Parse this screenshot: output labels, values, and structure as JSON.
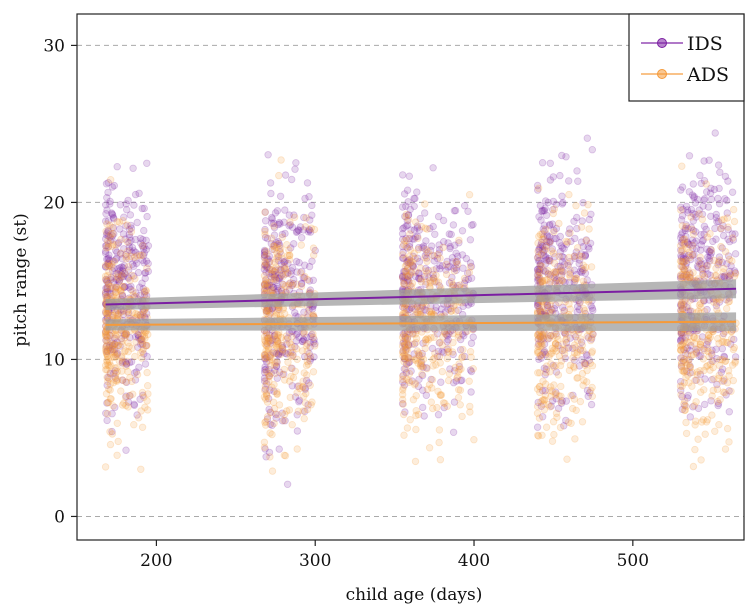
{
  "chart_data": {
    "type": "scatter",
    "title": "",
    "xlabel": "child age (days)",
    "ylabel": "pitch range (st)",
    "xlim": [
      150,
      570
    ],
    "ylim": [
      -1.5,
      32
    ],
    "xticks": [
      200,
      300,
      400,
      500
    ],
    "yticks": [
      0,
      10,
      20,
      30
    ],
    "grid": "horizontal-dashed",
    "legend_position": "top-right",
    "series": [
      {
        "name": "IDS",
        "color": "#7b1fa2",
        "point_opacity": 0.18,
        "fit_line": {
          "x": [
            168,
            565
          ],
          "y": [
            13.5,
            14.5
          ]
        },
        "age_groups": [
          {
            "x_min": 168,
            "x_max": 195,
            "mean": 14.5,
            "sd": 5.0,
            "n": 320
          },
          {
            "x_min": 268,
            "x_max": 300,
            "mean": 13.8,
            "sd": 5.2,
            "n": 320
          },
          {
            "x_min": 355,
            "x_max": 400,
            "mean": 14.2,
            "sd": 4.8,
            "n": 340
          },
          {
            "x_min": 440,
            "x_max": 475,
            "mean": 14.8,
            "sd": 5.0,
            "n": 320
          },
          {
            "x_min": 530,
            "x_max": 565,
            "mean": 15.0,
            "sd": 5.2,
            "n": 320
          }
        ]
      },
      {
        "name": "ADS",
        "color": "#f59a3a",
        "point_opacity": 0.18,
        "fit_line": {
          "x": [
            168,
            565
          ],
          "y": [
            12.2,
            12.4
          ]
        },
        "age_groups": [
          {
            "x_min": 168,
            "x_max": 195,
            "mean": 12.4,
            "sd": 4.5,
            "n": 320
          },
          {
            "x_min": 268,
            "x_max": 300,
            "mean": 12.0,
            "sd": 4.8,
            "n": 320
          },
          {
            "x_min": 355,
            "x_max": 400,
            "mean": 12.3,
            "sd": 4.6,
            "n": 340
          },
          {
            "x_min": 440,
            "x_max": 475,
            "mean": 12.2,
            "sd": 4.6,
            "n": 320
          },
          {
            "x_min": 530,
            "x_max": 565,
            "mean": 12.5,
            "sd": 4.8,
            "n": 320
          }
        ]
      }
    ]
  }
}
